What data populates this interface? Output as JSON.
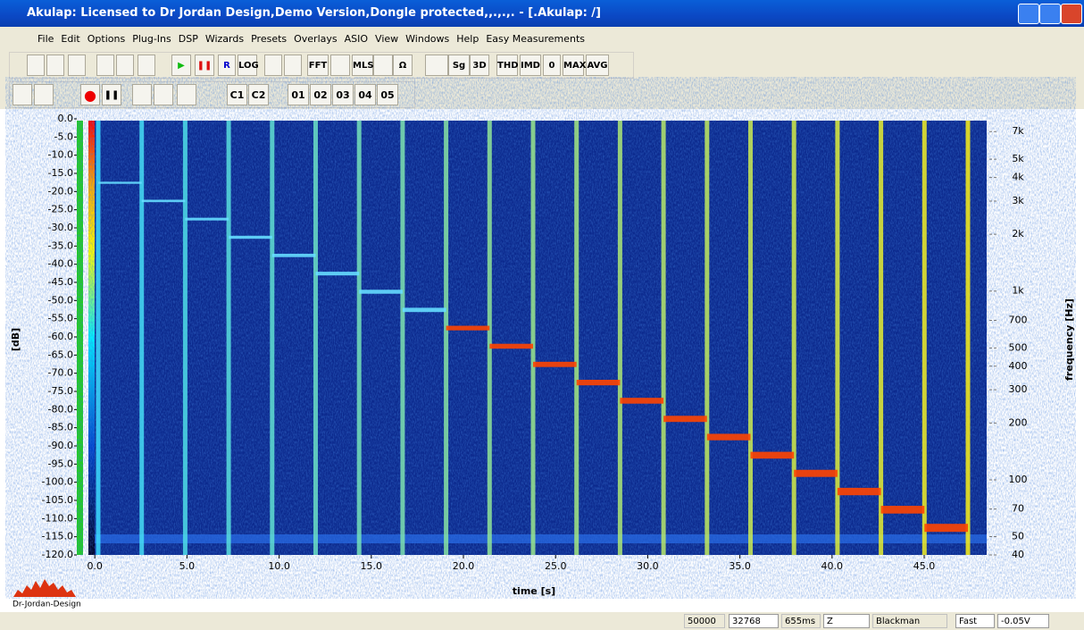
{
  "window": {
    "title": "Akulap: Licensed to Dr Jordan Design,Demo Version,Dongle protected,,.,.,. - [.Akulap: /]"
  },
  "menu": [
    "File",
    "Edit",
    "Options",
    "Plug-Ins",
    "DSP",
    "Wizards",
    "Presets",
    "Overlays",
    "ASIO",
    "View",
    "Windows",
    "Help",
    "Easy Measurements"
  ],
  "toolbar": {
    "row1": [
      "R",
      "LOG",
      "FFT",
      "MLS",
      "Ω",
      "Sg",
      "3D",
      "THD",
      "IMD",
      "0",
      "MAX",
      "AVG"
    ],
    "row2": [
      "C1",
      "C2",
      "01",
      "02",
      "03",
      "04",
      "05"
    ]
  },
  "chart_data": {
    "type": "spectrogram",
    "xlabel": "time [s]",
    "ylabel": "[dB]",
    "y2label": "frequency [Hz]",
    "xlim": [
      -0.3,
      48.1
    ],
    "xticks": [
      {
        "value": 0,
        "label": "0.0"
      },
      {
        "value": 5,
        "label": "5.0"
      },
      {
        "value": 10,
        "label": "10.0"
      },
      {
        "value": 15,
        "label": "15.0"
      },
      {
        "value": 20,
        "label": "20.0"
      },
      {
        "value": 25,
        "label": "25.0"
      },
      {
        "value": 30,
        "label": "30.0"
      },
      {
        "value": 35,
        "label": "35.0"
      },
      {
        "value": 40,
        "label": "40.0"
      },
      {
        "value": 45,
        "label": "45.0"
      }
    ],
    "ylim": [
      -120,
      0
    ],
    "yticks": [
      {
        "value": 0,
        "label": "0.0"
      },
      {
        "value": -5,
        "label": "-5.0"
      },
      {
        "value": -10,
        "label": "-10.0"
      },
      {
        "value": -15,
        "label": "-15.0"
      },
      {
        "value": -20,
        "label": "-20.0"
      },
      {
        "value": -25,
        "label": "-25.0"
      },
      {
        "value": -30,
        "label": "-30.0"
      },
      {
        "value": -35,
        "label": "-35.0"
      },
      {
        "value": -40,
        "label": "-40.0"
      },
      {
        "value": -45,
        "label": "-45.0"
      },
      {
        "value": -50,
        "label": "-50.0"
      },
      {
        "value": -55,
        "label": "-55.0"
      },
      {
        "value": -60,
        "label": "-60.0"
      },
      {
        "value": -65,
        "label": "-65.0"
      },
      {
        "value": -70,
        "label": "-70.0"
      },
      {
        "value": -75,
        "label": "-75.0"
      },
      {
        "value": -80,
        "label": "-80.0"
      },
      {
        "value": -85,
        "label": "-85.0"
      },
      {
        "value": -90,
        "label": "-90.0"
      },
      {
        "value": -95,
        "label": "-95.0"
      },
      {
        "value": -100,
        "label": "-100.0"
      },
      {
        "value": -105,
        "label": "-105.0"
      },
      {
        "value": -110,
        "label": "-110.0"
      },
      {
        "value": -115,
        "label": "-115.0"
      },
      {
        "value": -120,
        "label": "-120.0"
      }
    ],
    "y2lim": [
      40,
      8000
    ],
    "y2scale": "log",
    "y2ticks": [
      {
        "value": 7000,
        "label": "7k"
      },
      {
        "value": 5000,
        "label": "5k"
      },
      {
        "value": 4000,
        "label": "4k"
      },
      {
        "value": 3000,
        "label": "3k"
      },
      {
        "value": 2000,
        "label": "2k"
      },
      {
        "value": 1000,
        "label": "1k"
      },
      700,
      500,
      400,
      300,
      200,
      100,
      70,
      50,
      40
    ]
  },
  "logo": "Dr-Jordan-Design",
  "status": [
    "50000",
    "32768",
    "655ms",
    "Z",
    "Blackman",
    "Fast",
    "-0.05V"
  ]
}
